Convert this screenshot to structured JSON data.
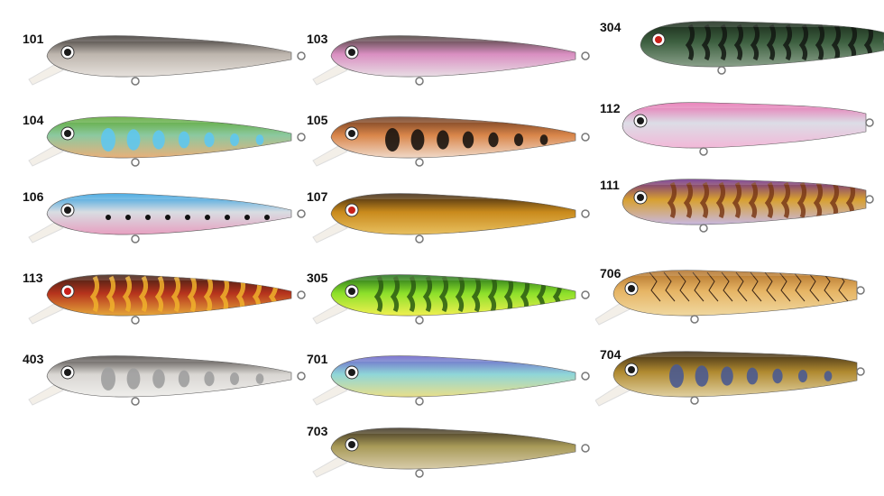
{
  "lures": [
    {
      "code": "101",
      "top": "#3a3532",
      "mid": "#bdb5ad",
      "belly": "#e6e1dc",
      "pattern": "none",
      "pcolor": "#000000"
    },
    {
      "code": "104",
      "top": "#5da832",
      "mid": "#8cc9a0",
      "belly": "#e9b07a",
      "pattern": "ovals",
      "pcolor": "#5fc6ee"
    },
    {
      "code": "106",
      "top": "#2f9fe0",
      "mid": "#d8dde2",
      "belly": "#e79fc0",
      "pattern": "dots",
      "pcolor": "#111111"
    },
    {
      "code": "113",
      "top": "#3b1f14",
      "mid": "#b5321c",
      "belly": "#e6a73a",
      "pattern": "bars",
      "pcolor": "#f0b12c"
    },
    {
      "code": "403",
      "top": "#4a4542",
      "mid": "#d9d6d2",
      "belly": "#efeeec",
      "pattern": "ovals",
      "pcolor": "#9e9e9e"
    },
    {
      "code": "103",
      "top": "#4a3f3a",
      "mid": "#d98fc1",
      "belly": "#e8dde4",
      "pattern": "none",
      "pcolor": "#000000"
    },
    {
      "code": "105",
      "top": "#6b3a20",
      "mid": "#d9864a",
      "belly": "#f0d9c8",
      "pattern": "ovals",
      "pcolor": "#1a1410"
    },
    {
      "code": "107",
      "top": "#3a2410",
      "mid": "#c98a1c",
      "belly": "#e8c060",
      "pattern": "none",
      "pcolor": "#000000"
    },
    {
      "code": "305",
      "top": "#1e6b1a",
      "mid": "#8ce02a",
      "belly": "#f0f050",
      "pattern": "bars",
      "pcolor": "#2a5a12"
    },
    {
      "code": "701",
      "top": "#6b5fc9",
      "mid": "#8fd6d8",
      "belly": "#e9df8a",
      "pattern": "none",
      "pcolor": "#000000"
    },
    {
      "code": "703",
      "top": "#3a3020",
      "mid": "#a89a58",
      "belly": "#d8ccaa",
      "pattern": "none",
      "pcolor": "#000000"
    },
    {
      "code": "304",
      "top": "#1a2a1a",
      "mid": "#3d6040",
      "belly": "#8aa08a",
      "pattern": "bars",
      "pcolor": "#121812"
    },
    {
      "code": "112",
      "top": "#e86fb0",
      "mid": "#dcdde6",
      "belly": "#f2b8d8",
      "pattern": "none",
      "pcolor": "#000000"
    },
    {
      "code": "111",
      "top": "#6a2a8a",
      "mid": "#d8a030",
      "belly": "#c8b8e0",
      "pattern": "bars",
      "pcolor": "#7a3a18"
    },
    {
      "code": "706",
      "top": "#b07028",
      "mid": "#e6b464",
      "belly": "#f0d8a0",
      "pattern": "cracks",
      "pcolor": "#3a2414"
    },
    {
      "code": "704",
      "top": "#3a2a14",
      "mid": "#b08a30",
      "belly": "#e0d0a0",
      "pattern": "ovals",
      "pcolor": "#4a5a90"
    }
  ]
}
